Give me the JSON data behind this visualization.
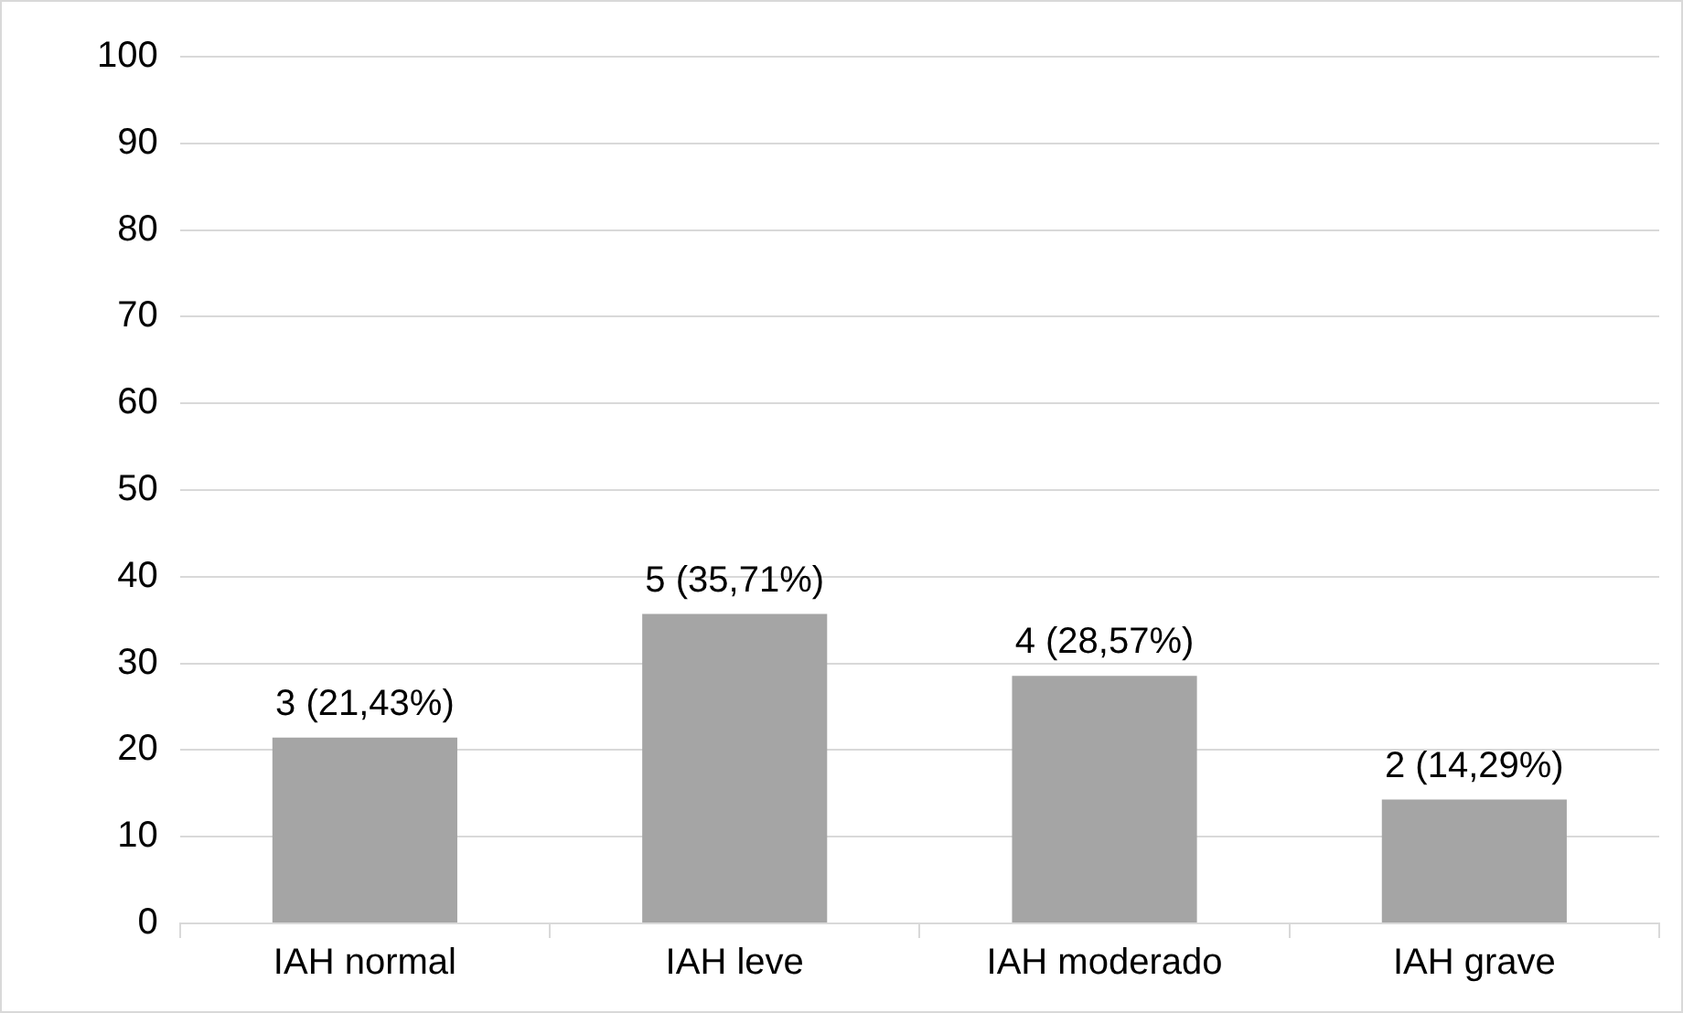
{
  "chart_data": {
    "type": "bar",
    "categories": [
      "IAH normal",
      "IAH leve",
      "IAH moderado",
      "IAH grave"
    ],
    "values": [
      21.43,
      35.71,
      28.57,
      14.29
    ],
    "value_labels": [
      "3 (21,43%)",
      "5 (35,71%)",
      "4 (28,57%)",
      "2 (14,29%)"
    ],
    "color": "#a5a5a5",
    "ylim": [
      0,
      100
    ],
    "yticks": [
      0,
      10,
      20,
      30,
      40,
      50,
      60,
      70,
      80,
      90,
      100
    ],
    "grid": "y",
    "legend": false
  }
}
